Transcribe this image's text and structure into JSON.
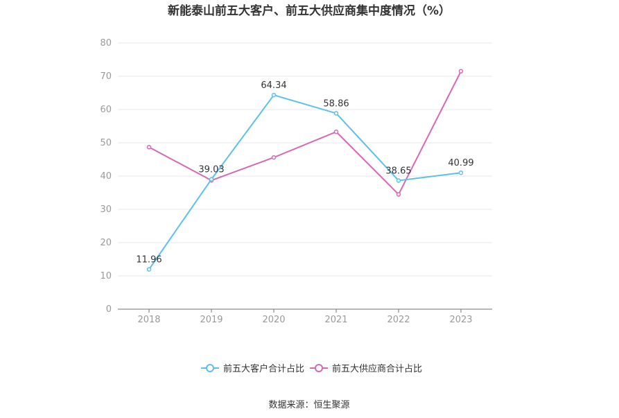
{
  "chart_data": {
    "type": "line",
    "title": "新能泰山前五大客户、前五大供应商集中度情况（%）",
    "categories": [
      "2018",
      "2019",
      "2020",
      "2021",
      "2022",
      "2023"
    ],
    "ylim": [
      0,
      80
    ],
    "yticks": [
      "0",
      "10",
      "20",
      "30",
      "40",
      "50",
      "60",
      "70",
      "80"
    ],
    "grid": true,
    "legend_position": "bottom",
    "series": [
      {
        "name": "前五大客户合计占比",
        "color": "#5bc0ea",
        "values": [
          11.96,
          39.03,
          64.34,
          58.86,
          38.65,
          40.99
        ],
        "labels": [
          "11.96",
          "39.03",
          "64.34",
          "58.86",
          "38.65",
          "40.99"
        ]
      },
      {
        "name": "前五大供应商合计占比",
        "color": "#d568b4",
        "values": [
          48.7,
          38.7,
          45.6,
          53.3,
          34.5,
          71.5
        ],
        "labels": []
      }
    ],
    "source": "数据来源：恒生聚源"
  }
}
